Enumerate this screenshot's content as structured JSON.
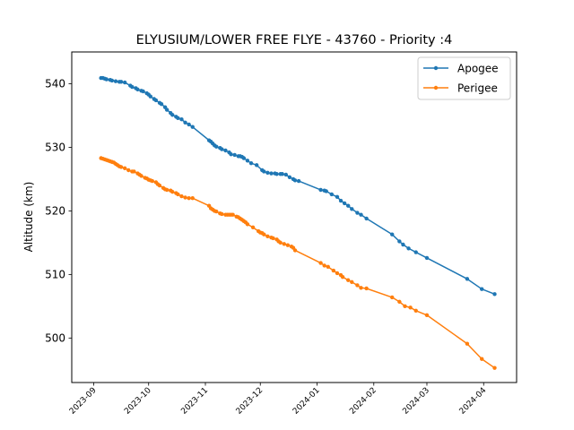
{
  "chart_data": {
    "type": "line",
    "title": "ELYUSIUM/LOWER FREE FLYE - 43760 - Priority :4",
    "xlabel": "",
    "ylabel": "Altitude (km)",
    "x_type": "date",
    "xlim": [
      "2023-08-20",
      "2024-04-19"
    ],
    "ylim": [
      493.0,
      545.0
    ],
    "x_ticks": [
      "2023-09",
      "2023-10",
      "2023-11",
      "2023-12",
      "2024-01",
      "2024-02",
      "2024-03",
      "2024-04"
    ],
    "y_ticks": [
      500,
      510,
      520,
      530,
      540
    ],
    "grid": false,
    "legend_position": "top-right",
    "series": [
      {
        "name": "Apogee",
        "color": "#1f77b4",
        "points": [
          [
            "2023-09-05",
            540.9
          ],
          [
            "2023-09-06",
            540.9
          ],
          [
            "2023-09-07",
            540.8
          ],
          [
            "2023-09-08",
            540.7
          ],
          [
            "2023-09-10",
            540.6
          ],
          [
            "2023-09-11",
            540.5
          ],
          [
            "2023-09-13",
            540.4
          ],
          [
            "2023-09-15",
            540.3
          ],
          [
            "2023-09-16",
            540.3
          ],
          [
            "2023-09-18",
            540.2
          ],
          [
            "2023-09-21",
            539.7
          ],
          [
            "2023-09-22",
            539.5
          ],
          [
            "2023-09-24",
            539.3
          ],
          [
            "2023-09-25",
            539.1
          ],
          [
            "2023-09-27",
            538.9
          ],
          [
            "2023-09-28",
            538.8
          ],
          [
            "2023-09-30",
            538.5
          ],
          [
            "2023-10-01",
            538.3
          ],
          [
            "2023-10-02",
            538.0
          ],
          [
            "2023-10-04",
            537.6
          ],
          [
            "2023-10-05",
            537.4
          ],
          [
            "2023-10-07",
            537.0
          ],
          [
            "2023-10-08",
            536.8
          ],
          [
            "2023-10-10",
            536.3
          ],
          [
            "2023-10-11",
            535.9
          ],
          [
            "2023-10-13",
            535.4
          ],
          [
            "2023-10-14",
            535.1
          ],
          [
            "2023-10-16",
            534.8
          ],
          [
            "2023-10-17",
            534.6
          ],
          [
            "2023-10-19",
            534.4
          ],
          [
            "2023-10-21",
            533.9
          ],
          [
            "2023-10-23",
            533.6
          ],
          [
            "2023-10-25",
            533.2
          ],
          [
            "2023-11-03",
            531.1
          ],
          [
            "2023-11-04",
            530.9
          ],
          [
            "2023-11-05",
            530.6
          ],
          [
            "2023-11-06",
            530.3
          ],
          [
            "2023-11-07",
            530.1
          ],
          [
            "2023-11-09",
            529.9
          ],
          [
            "2023-11-10",
            529.7
          ],
          [
            "2023-11-12",
            529.5
          ],
          [
            "2023-11-14",
            529.2
          ],
          [
            "2023-11-15",
            528.9
          ],
          [
            "2023-11-17",
            528.8
          ],
          [
            "2023-11-19",
            528.6
          ],
          [
            "2023-11-20",
            528.6
          ],
          [
            "2023-11-21",
            528.5
          ],
          [
            "2023-11-22",
            528.3
          ],
          [
            "2023-11-24",
            527.9
          ],
          [
            "2023-11-26",
            527.5
          ],
          [
            "2023-11-29",
            527.2
          ],
          [
            "2023-12-02",
            526.4
          ],
          [
            "2023-12-03",
            526.2
          ],
          [
            "2023-12-05",
            526.0
          ],
          [
            "2023-12-07",
            525.9
          ],
          [
            "2023-12-09",
            525.9
          ],
          [
            "2023-12-10",
            525.8
          ],
          [
            "2023-12-12",
            525.8
          ],
          [
            "2023-12-13",
            525.8
          ],
          [
            "2023-12-15",
            525.7
          ],
          [
            "2023-12-17",
            525.3
          ],
          [
            "2023-12-19",
            525.0
          ],
          [
            "2023-12-20",
            524.8
          ],
          [
            "2023-12-22",
            524.7
          ],
          [
            "2024-01-03",
            523.3
          ],
          [
            "2024-01-05",
            523.2
          ],
          [
            "2024-01-06",
            523.1
          ],
          [
            "2024-01-09",
            522.6
          ],
          [
            "2024-01-12",
            522.2
          ],
          [
            "2024-01-14",
            521.6
          ],
          [
            "2024-01-16",
            521.2
          ],
          [
            "2024-01-18",
            520.8
          ],
          [
            "2024-01-20",
            520.3
          ],
          [
            "2024-01-23",
            519.7
          ],
          [
            "2024-01-25",
            519.4
          ],
          [
            "2024-01-28",
            518.8
          ],
          [
            "2024-02-11",
            516.3
          ],
          [
            "2024-02-15",
            515.2
          ],
          [
            "2024-02-17",
            514.7
          ],
          [
            "2024-02-20",
            514.1
          ],
          [
            "2024-02-24",
            513.5
          ],
          [
            "2024-03-01",
            512.6
          ],
          [
            "2024-03-23",
            509.3
          ],
          [
            "2024-03-31",
            507.7
          ],
          [
            "2024-04-07",
            506.9
          ]
        ]
      },
      {
        "name": "Perigee",
        "color": "#ff7f0e",
        "points": [
          [
            "2023-09-05",
            528.3
          ],
          [
            "2023-09-06",
            528.2
          ],
          [
            "2023-09-07",
            528.1
          ],
          [
            "2023-09-08",
            528.0
          ],
          [
            "2023-09-09",
            527.9
          ],
          [
            "2023-09-10",
            527.8
          ],
          [
            "2023-09-11",
            527.7
          ],
          [
            "2023-09-12",
            527.6
          ],
          [
            "2023-09-13",
            527.4
          ],
          [
            "2023-09-14",
            527.2
          ],
          [
            "2023-09-15",
            527.0
          ],
          [
            "2023-09-16",
            526.9
          ],
          [
            "2023-09-18",
            526.7
          ],
          [
            "2023-09-20",
            526.4
          ],
          [
            "2023-09-22",
            526.2
          ],
          [
            "2023-09-23",
            526.2
          ],
          [
            "2023-09-25",
            525.9
          ],
          [
            "2023-09-26",
            525.7
          ],
          [
            "2023-09-27",
            525.5
          ],
          [
            "2023-09-29",
            525.2
          ],
          [
            "2023-09-30",
            525.1
          ],
          [
            "2023-10-01",
            524.9
          ],
          [
            "2023-10-02",
            524.8
          ],
          [
            "2023-10-03",
            524.7
          ],
          [
            "2023-10-05",
            524.5
          ],
          [
            "2023-10-06",
            524.2
          ],
          [
            "2023-10-07",
            524.0
          ],
          [
            "2023-10-09",
            523.6
          ],
          [
            "2023-10-10",
            523.4
          ],
          [
            "2023-10-11",
            523.3
          ],
          [
            "2023-10-13",
            523.2
          ],
          [
            "2023-10-14",
            523.0
          ],
          [
            "2023-10-16",
            522.8
          ],
          [
            "2023-10-17",
            522.6
          ],
          [
            "2023-10-19",
            522.3
          ],
          [
            "2023-10-21",
            522.1
          ],
          [
            "2023-10-23",
            522.0
          ],
          [
            "2023-10-25",
            522.0
          ],
          [
            "2023-11-03",
            520.8
          ],
          [
            "2023-11-04",
            520.4
          ],
          [
            "2023-11-05",
            520.2
          ],
          [
            "2023-11-06",
            520.0
          ],
          [
            "2023-11-07",
            519.9
          ],
          [
            "2023-11-09",
            519.6
          ],
          [
            "2023-11-10",
            519.5
          ],
          [
            "2023-11-12",
            519.4
          ],
          [
            "2023-11-13",
            519.4
          ],
          [
            "2023-11-14",
            519.4
          ],
          [
            "2023-11-15",
            519.4
          ],
          [
            "2023-11-16",
            519.4
          ],
          [
            "2023-11-18",
            519.1
          ],
          [
            "2023-11-19",
            519.0
          ],
          [
            "2023-11-20",
            518.8
          ],
          [
            "2023-11-21",
            518.6
          ],
          [
            "2023-11-22",
            518.4
          ],
          [
            "2023-11-23",
            518.2
          ],
          [
            "2023-11-24",
            517.9
          ],
          [
            "2023-11-27",
            517.4
          ],
          [
            "2023-11-30",
            516.8
          ],
          [
            "2023-12-01",
            516.6
          ],
          [
            "2023-12-02",
            516.5
          ],
          [
            "2023-12-03",
            516.3
          ],
          [
            "2023-12-05",
            516.0
          ],
          [
            "2023-12-07",
            515.8
          ],
          [
            "2023-12-08",
            515.7
          ],
          [
            "2023-12-10",
            515.5
          ],
          [
            "2023-12-11",
            515.2
          ],
          [
            "2023-12-12",
            515.0
          ],
          [
            "2023-12-14",
            514.8
          ],
          [
            "2023-12-16",
            514.6
          ],
          [
            "2023-12-18",
            514.4
          ],
          [
            "2023-12-19",
            514.2
          ],
          [
            "2023-12-20",
            513.8
          ],
          [
            "2024-01-03",
            511.8
          ],
          [
            "2024-01-05",
            511.4
          ],
          [
            "2024-01-07",
            511.2
          ],
          [
            "2024-01-10",
            510.6
          ],
          [
            "2024-01-12",
            510.2
          ],
          [
            "2024-01-14",
            509.9
          ],
          [
            "2024-01-15",
            509.6
          ],
          [
            "2024-01-18",
            509.1
          ],
          [
            "2024-01-20",
            508.8
          ],
          [
            "2024-01-23",
            508.3
          ],
          [
            "2024-01-25",
            507.9
          ],
          [
            "2024-01-28",
            507.8
          ],
          [
            "2024-02-11",
            506.4
          ],
          [
            "2024-02-15",
            505.7
          ],
          [
            "2024-02-18",
            505.0
          ],
          [
            "2024-02-21",
            504.8
          ],
          [
            "2024-02-24",
            504.3
          ],
          [
            "2024-03-01",
            503.6
          ],
          [
            "2024-03-23",
            499.1
          ],
          [
            "2024-03-31",
            496.7
          ],
          [
            "2024-04-07",
            495.3
          ]
        ]
      }
    ]
  }
}
